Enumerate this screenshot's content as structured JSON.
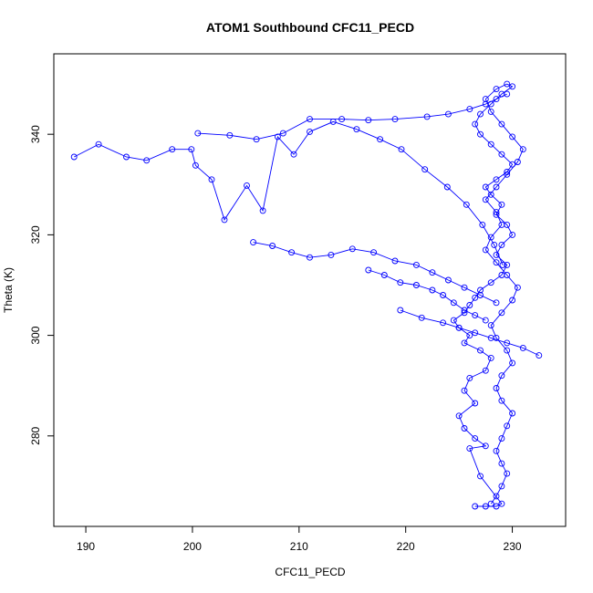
{
  "chart_data": {
    "type": "scatter",
    "title": "ATOM1 Southbound CFC11_PECD",
    "xlabel": "CFC11_PECD",
    "ylabel": "Theta (K)",
    "xlim": [
      187,
      235
    ],
    "ylim": [
      262,
      356
    ],
    "x_ticks": [
      "190",
      "200",
      "210",
      "220",
      "230"
    ],
    "y_ticks": [
      "280",
      "300",
      "320",
      "340"
    ],
    "grid": false,
    "marker": "open-circle",
    "connected": true,
    "color": "#0000ff",
    "series": [
      {
        "x": [
          226.5,
          227.5,
          228.5,
          229.0,
          227.0,
          226.0,
          227.5,
          226.5,
          225.5,
          225.0,
          226.5,
          225.5,
          226.0,
          227.5,
          228.0,
          227.0,
          225.5,
          226.0,
          225.0,
          224.5,
          225.5,
          226.0,
          226.5,
          227.0,
          228.0,
          229.0,
          229.5,
          228.5,
          229.0,
          230.0,
          229.5,
          228.5,
          229.0,
          228.0,
          227.5,
          228.5,
          229.5,
          230.0,
          229.0,
          228.0,
          227.0,
          226.5,
          227.0,
          228.0,
          229.0,
          230.0,
          229.5,
          228.5,
          227.5,
          228.0,
          229.0,
          230.0,
          231.0,
          230.5,
          229.5,
          228.5,
          227.5,
          228.5,
          229.0,
          228.0,
          227.5,
          228.5,
          229.5,
          230.5,
          230.0,
          229.0,
          228.0,
          228.5,
          229.5,
          230.0,
          229.0,
          228.5,
          229.0,
          230.0,
          229.5,
          229.0,
          228.5,
          229.0,
          229.5,
          229.0,
          228.5,
          228.0
        ],
        "y": [
          266.0,
          266.0,
          266.0,
          266.5,
          272.0,
          277.5,
          278.0,
          279.5,
          281.5,
          284.0,
          286.5,
          289.0,
          291.5,
          293.0,
          295.5,
          297.0,
          298.5,
          300.0,
          301.5,
          303.0,
          304.5,
          306.0,
          307.5,
          309.0,
          310.5,
          312.0,
          314.0,
          316.0,
          318.0,
          320.0,
          322.0,
          324.0,
          326.0,
          328.0,
          329.5,
          331.0,
          332.5,
          334.0,
          336.0,
          338.0,
          340.0,
          342.0,
          344.0,
          346.0,
          348.0,
          349.5,
          350.0,
          349.0,
          347.0,
          344.5,
          342.0,
          339.5,
          337.0,
          334.5,
          332.0,
          329.5,
          327.0,
          324.5,
          322.0,
          319.5,
          317.0,
          314.5,
          312.0,
          309.5,
          307.0,
          304.5,
          302.0,
          299.5,
          297.0,
          294.5,
          292.0,
          289.5,
          287.0,
          284.5,
          282.0,
          279.5,
          277.0,
          274.5,
          272.5,
          270.0,
          268.0,
          266.5
        ]
      },
      {
        "x": [
          188.9,
          191.2,
          193.8,
          195.7,
          198.1,
          199.9,
          200.3,
          201.8,
          203.0,
          205.1,
          206.6,
          208.0,
          209.5,
          211.0,
          213.2,
          215.4,
          217.6,
          219.6,
          221.8,
          223.9,
          225.7,
          227.2,
          228.3,
          229.1
        ],
        "y": [
          335.5,
          338.0,
          335.5,
          334.8,
          337.0,
          337.0,
          333.8,
          331.0,
          323.0,
          329.8,
          324.8,
          339.5,
          336.0,
          340.5,
          342.5,
          341.0,
          339.0,
          337.0,
          333.0,
          329.5,
          326.0,
          322.0,
          318.0,
          314.0
        ]
      },
      {
        "x": [
          200.5,
          203.5,
          206.0,
          208.5,
          211.0,
          214.0,
          216.5,
          219.0,
          222.0,
          224.0,
          226.0,
          227.5,
          228.5,
          229.5
        ],
        "y": [
          340.2,
          339.8,
          339.0,
          340.2,
          343.0,
          343.0,
          342.8,
          343.0,
          343.5,
          344.0,
          345.0,
          346.0,
          347.0,
          348.0
        ]
      },
      {
        "x": [
          205.7,
          207.5,
          209.3,
          211.0,
          213.0,
          215.0,
          217.0,
          219.0,
          221.0,
          222.5,
          224.0,
          225.5,
          227.0,
          228.5
        ],
        "y": [
          318.5,
          317.8,
          316.5,
          315.5,
          316.0,
          317.2,
          316.5,
          314.8,
          314.0,
          312.5,
          311.0,
          309.5,
          308.0,
          306.5
        ]
      },
      {
        "x": [
          216.5,
          218.0,
          219.5,
          221.0,
          222.5,
          223.5,
          224.5,
          225.5,
          226.5,
          227.5
        ],
        "y": [
          313.0,
          312.0,
          310.5,
          310.0,
          309.0,
          308.0,
          306.5,
          305.0,
          304.0,
          303.0
        ]
      },
      {
        "x": [
          219.5,
          221.5,
          223.5,
          225.0,
          226.5,
          228.0,
          229.5,
          231.0,
          232.5
        ],
        "y": [
          305.0,
          303.5,
          302.5,
          301.5,
          300.5,
          299.5,
          298.5,
          297.5,
          296.0
        ]
      }
    ]
  }
}
